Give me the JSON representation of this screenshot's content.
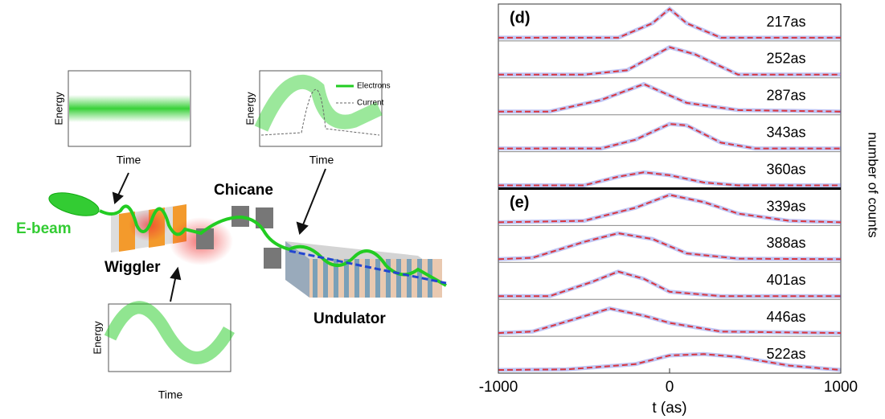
{
  "diagram": {
    "beam_label": "E-beam",
    "wiggler_label": "Wiggler",
    "chicane_label": "Chicane",
    "undulator_label": "Undulator",
    "insets": [
      {
        "ylabel": "Energy",
        "xlabel": "Time"
      },
      {
        "ylabel": "Energy",
        "xlabel": "Time",
        "legend": [
          "Electrons",
          "Current"
        ]
      },
      {
        "ylabel": "Energy",
        "xlabel": "Time"
      }
    ]
  },
  "chart_data": {
    "type": "line",
    "xlabel": "t (as)",
    "ylabel": "number of counts",
    "xlim": [
      -1000,
      1000
    ],
    "xticks": [
      -1000,
      0,
      1000
    ],
    "ylim": [
      0,
      1
    ],
    "line_color": "#d9363e",
    "band_color": "#4a5ae0",
    "groups": [
      {
        "tag": "(d)",
        "first_panel": 0
      },
      {
        "tag": "(e)",
        "first_panel": 5
      }
    ],
    "panels": [
      {
        "label": "217as",
        "x": [
          -1000,
          -300,
          -100,
          0,
          100,
          300,
          1000
        ],
        "values": [
          0,
          0,
          0.5,
          1,
          0.5,
          0,
          0
        ]
      },
      {
        "label": "252as",
        "x": [
          -1000,
          -500,
          -250,
          0,
          150,
          400,
          1000
        ],
        "values": [
          0,
          0,
          0.15,
          0.95,
          0.7,
          0,
          0
        ]
      },
      {
        "label": "287as",
        "x": [
          -1000,
          -700,
          -400,
          -150,
          100,
          400,
          1000
        ],
        "values": [
          0,
          0,
          0.4,
          0.95,
          0.3,
          0.05,
          0
        ]
      },
      {
        "label": "343as",
        "x": [
          -1000,
          -400,
          -200,
          0,
          100,
          300,
          500,
          1000
        ],
        "values": [
          0,
          0,
          0.3,
          0.85,
          0.8,
          0.2,
          0,
          0
        ]
      },
      {
        "label": "360as",
        "x": [
          -1000,
          -500,
          -300,
          -150,
          0,
          200,
          400,
          1000
        ],
        "values": [
          0,
          0,
          0.3,
          0.45,
          0.35,
          0.1,
          0,
          0
        ]
      },
      {
        "label": "339as",
        "x": [
          -1000,
          -500,
          -200,
          0,
          200,
          400,
          700,
          1000
        ],
        "values": [
          0,
          0.05,
          0.5,
          0.95,
          0.7,
          0.3,
          0.05,
          0
        ]
      },
      {
        "label": "388as",
        "x": [
          -1000,
          -800,
          -500,
          -300,
          -100,
          100,
          400,
          1000
        ],
        "values": [
          0,
          0.05,
          0.6,
          0.9,
          0.7,
          0.2,
          0.02,
          0
        ]
      },
      {
        "label": "401as",
        "x": [
          -1000,
          -700,
          -450,
          -300,
          -150,
          0,
          300,
          1000
        ],
        "values": [
          0,
          0,
          0.5,
          0.85,
          0.6,
          0.15,
          0,
          0
        ]
      },
      {
        "label": "446as",
        "x": [
          -1000,
          -800,
          -600,
          -350,
          -150,
          0,
          300,
          1000
        ],
        "values": [
          0,
          0.05,
          0.4,
          0.85,
          0.6,
          0.35,
          0.05,
          0
        ]
      },
      {
        "label": "522as",
        "x": [
          -1000,
          -600,
          -200,
          0,
          200,
          400,
          700,
          1000
        ],
        "values": [
          0,
          0.02,
          0.2,
          0.5,
          0.55,
          0.45,
          0.15,
          0
        ]
      }
    ]
  }
}
